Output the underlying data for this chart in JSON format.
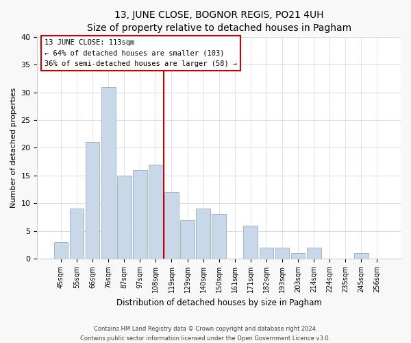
{
  "title": "13, JUNE CLOSE, BOGNOR REGIS, PO21 4UH",
  "subtitle": "Size of property relative to detached houses in Pagham",
  "xlabel": "Distribution of detached houses by size in Pagham",
  "ylabel": "Number of detached properties",
  "bar_labels": [
    "45sqm",
    "55sqm",
    "66sqm",
    "76sqm",
    "87sqm",
    "97sqm",
    "108sqm",
    "119sqm",
    "129sqm",
    "140sqm",
    "150sqm",
    "161sqm",
    "171sqm",
    "182sqm",
    "193sqm",
    "203sqm",
    "214sqm",
    "224sqm",
    "235sqm",
    "245sqm",
    "256sqm"
  ],
  "bar_values": [
    3,
    9,
    21,
    31,
    15,
    16,
    17,
    12,
    7,
    9,
    8,
    0,
    6,
    2,
    2,
    1,
    2,
    0,
    0,
    1,
    0
  ],
  "bar_color": "#c8d8e8",
  "bar_edge_color": "#a0b8cc",
  "vline_index": 6.5,
  "vline_color": "#cc0000",
  "annotation_title": "13 JUNE CLOSE: 113sqm",
  "annotation_line1": "← 64% of detached houses are smaller (103)",
  "annotation_line2": "36% of semi-detached houses are larger (58) →",
  "annotation_box_edge": "#cc0000",
  "ylim": [
    0,
    40
  ],
  "yticks": [
    0,
    5,
    10,
    15,
    20,
    25,
    30,
    35,
    40
  ],
  "footer_line1": "Contains HM Land Registry data © Crown copyright and database right 2024.",
  "footer_line2": "Contains public sector information licensed under the Open Government Licence v3.0.",
  "background_color": "#f8f8f8",
  "plot_background": "#ffffff",
  "grid_color": "#d8d8e8"
}
